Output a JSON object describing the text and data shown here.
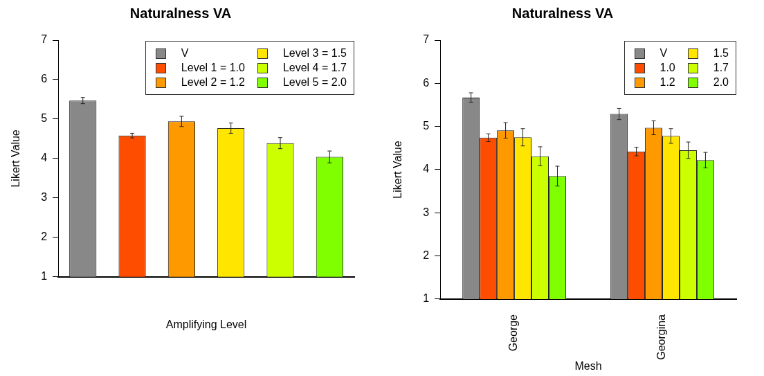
{
  "chart_data": [
    {
      "type": "bar",
      "title": "Naturalness VA",
      "xlabel": "Amplifying Level",
      "ylabel": "Likert Value",
      "categories": [
        null,
        null,
        null,
        null,
        null,
        null
      ],
      "ylim": [
        1,
        7
      ],
      "yticks": [
        1,
        2,
        3,
        4,
        5,
        6,
        7
      ],
      "legend": "top right",
      "grid": false,
      "series": [
        {
          "name": "V",
          "color": "#888888",
          "values": [
            5.47,
            null,
            null,
            null,
            null,
            null
          ],
          "errors": [
            0.08,
            null,
            null,
            null,
            null,
            null
          ]
        },
        {
          "name": "Level 1 = 1.0",
          "color": "#ff4d00",
          "values": [
            null,
            4.58,
            null,
            null,
            null,
            null
          ],
          "errors": [
            null,
            0.06,
            null,
            null,
            null,
            null
          ]
        },
        {
          "name": "Level 2 = 1.2",
          "color": "#ff9900",
          "values": [
            null,
            null,
            4.94,
            null,
            null,
            null
          ],
          "errors": [
            null,
            null,
            0.13,
            null,
            null,
            null
          ]
        },
        {
          "name": "Level 3 = 1.5",
          "color": "#ffe500",
          "values": [
            null,
            null,
            null,
            4.77,
            null,
            null
          ],
          "errors": [
            null,
            null,
            null,
            0.13,
            null,
            null
          ]
        },
        {
          "name": "Level 4 = 1.7",
          "color": "#ccff00",
          "values": [
            null,
            null,
            null,
            null,
            4.39,
            null
          ],
          "errors": [
            null,
            null,
            null,
            null,
            0.14,
            null
          ]
        },
        {
          "name": "Level 5 = 2.0",
          "color": "#80ff00",
          "values": [
            null,
            null,
            null,
            null,
            null,
            4.04
          ],
          "errors": [
            null,
            null,
            null,
            null,
            null,
            0.15
          ]
        }
      ]
    },
    {
      "type": "bar",
      "title": "Naturalness VA",
      "xlabel": "Mesh",
      "ylabel": "Likert Value",
      "categories": [
        "George",
        "Georgina"
      ],
      "ylim": [
        1,
        7
      ],
      "yticks": [
        1,
        2,
        3,
        4,
        5,
        6,
        7
      ],
      "legend": "top right",
      "grid": false,
      "series": [
        {
          "name": "V",
          "color": "#888888",
          "values": [
            5.67,
            5.29
          ],
          "errors": [
            0.11,
            0.13
          ]
        },
        {
          "name": "1.0",
          "color": "#ff4d00",
          "values": [
            4.74,
            4.42
          ],
          "errors": [
            0.09,
            0.1
          ]
        },
        {
          "name": "1.2",
          "color": "#ff9900",
          "values": [
            4.91,
            4.97
          ],
          "errors": [
            0.18,
            0.16
          ]
        },
        {
          "name": "1.5",
          "color": "#ffe500",
          "values": [
            4.75,
            4.78
          ],
          "errors": [
            0.2,
            0.17
          ]
        },
        {
          "name": "1.7",
          "color": "#ccff00",
          "values": [
            4.31,
            4.45
          ],
          "errors": [
            0.22,
            0.19
          ]
        },
        {
          "name": "2.0",
          "color": "#80ff00",
          "values": [
            3.85,
            4.22
          ],
          "errors": [
            0.23,
            0.18
          ]
        }
      ]
    }
  ]
}
